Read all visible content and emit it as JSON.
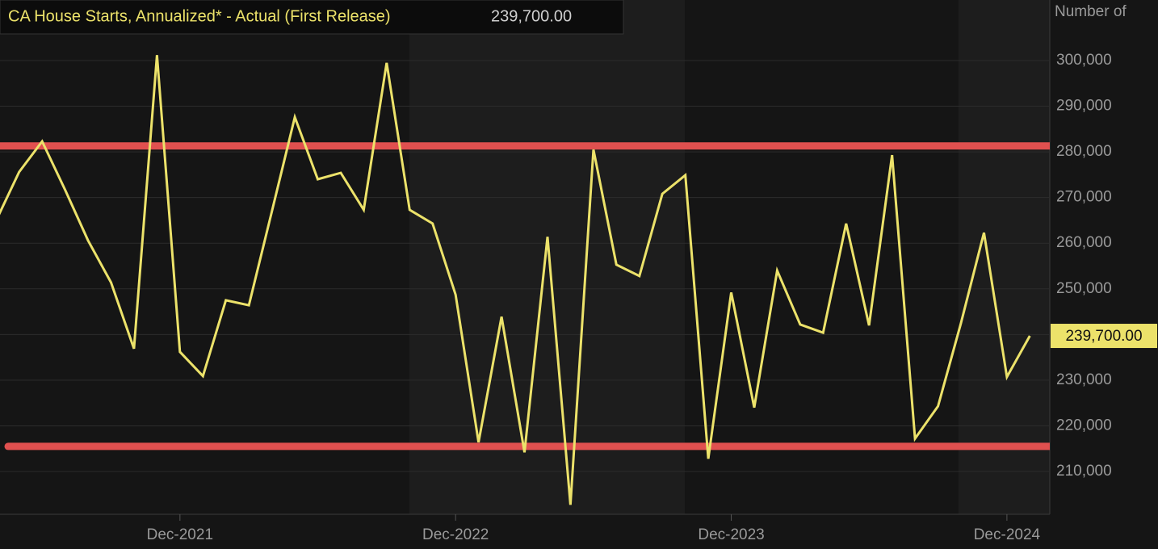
{
  "chart_data": {
    "type": "line",
    "title": "CA House Starts, Annualized* - Actual (First Release)",
    "y_axis_label": "Number of",
    "current_value": {
      "value": 239700,
      "label": "239,700.00"
    },
    "x": [
      "2021-04",
      "2021-05",
      "2021-06",
      "2021-07",
      "2021-08",
      "2021-09",
      "2021-10",
      "2021-11",
      "2021-12",
      "2022-01",
      "2022-02",
      "2022-03",
      "2022-04",
      "2022-05",
      "2022-06",
      "2022-07",
      "2022-08",
      "2022-09",
      "2022-10",
      "2022-11",
      "2022-12",
      "2023-01",
      "2023-02",
      "2023-03",
      "2023-04",
      "2023-05",
      "2023-06",
      "2023-07",
      "2023-08",
      "2023-09",
      "2023-10",
      "2023-11",
      "2023-12",
      "2024-01",
      "2024-02",
      "2024-03",
      "2024-04",
      "2024-05",
      "2024-06",
      "2024-07",
      "2024-08",
      "2024-09",
      "2024-10",
      "2024-11",
      "2024-12",
      "2025-01"
    ],
    "series": [
      {
        "name": "CA House Starts, Annualized* - Actual (First Release)",
        "color": "#ece26a",
        "values": [
          265000,
          275600,
          282300,
          271700,
          260600,
          251400,
          236900,
          301200,
          236200,
          230900,
          247500,
          246400,
          266900,
          287600,
          274000,
          275400,
          267300,
          299500,
          267300,
          264300,
          248700,
          216400,
          243900,
          214200,
          261400,
          202700,
          280500,
          255300,
          252800,
          270800,
          274900,
          212800,
          249200,
          224000,
          254000,
          242200,
          240400,
          264300,
          242000,
          279300,
          217200,
          224300,
          242500,
          262300,
          230700,
          239700
        ]
      }
    ],
    "hlines": [
      {
        "value": 281300,
        "color": "#e0504f"
      },
      {
        "value": 215500,
        "color": "#e0504f"
      }
    ],
    "xlim": [
      "2021-04-06",
      "2025-01-27"
    ],
    "xticks": [
      {
        "value": "2021-12",
        "label": "Dec-2021"
      },
      {
        "value": "2022-12",
        "label": "Dec-2022"
      },
      {
        "value": "2023-12",
        "label": "Dec-2023"
      },
      {
        "value": "2024-12",
        "label": "Dec-2024"
      }
    ],
    "ylim": [
      200630,
      313260
    ],
    "yticks": [
      {
        "value": 210000,
        "label": "210,000"
      },
      {
        "value": 220000,
        "label": "220,000"
      },
      {
        "value": 230000,
        "label": "230,000"
      },
      {
        "value": 240000,
        "label": "240,000"
      },
      {
        "value": 250000,
        "label": "250,000"
      },
      {
        "value": 260000,
        "label": "260,000"
      },
      {
        "value": 270000,
        "label": "270,000"
      },
      {
        "value": 280000,
        "label": "280,000"
      },
      {
        "value": 290000,
        "label": "290,000"
      },
      {
        "value": 300000,
        "label": "300,000"
      }
    ],
    "grid": true
  }
}
